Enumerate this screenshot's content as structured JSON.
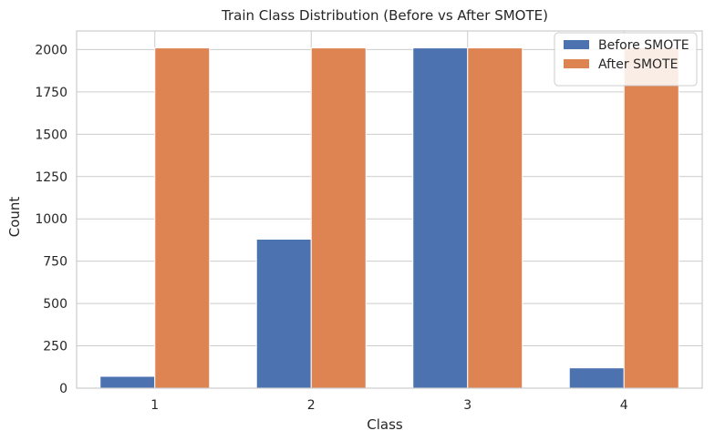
{
  "chart_data": {
    "type": "bar",
    "title": "Train Class Distribution (Before vs After SMOTE)",
    "xlabel": "Class",
    "ylabel": "Count",
    "categories": [
      "1",
      "2",
      "3",
      "4"
    ],
    "series": [
      {
        "name": "Before SMOTE",
        "values": [
          70,
          880,
          2010,
          120
        ],
        "color": "#4c72b0"
      },
      {
        "name": "After SMOTE",
        "values": [
          2010,
          2010,
          2010,
          2010
        ],
        "color": "#dd8452"
      }
    ],
    "ylim": [
      0,
      2110
    ],
    "yticks": [
      0,
      250,
      500,
      750,
      1000,
      1250,
      1500,
      1750,
      2000
    ],
    "grid": true,
    "legend": "top-right"
  }
}
